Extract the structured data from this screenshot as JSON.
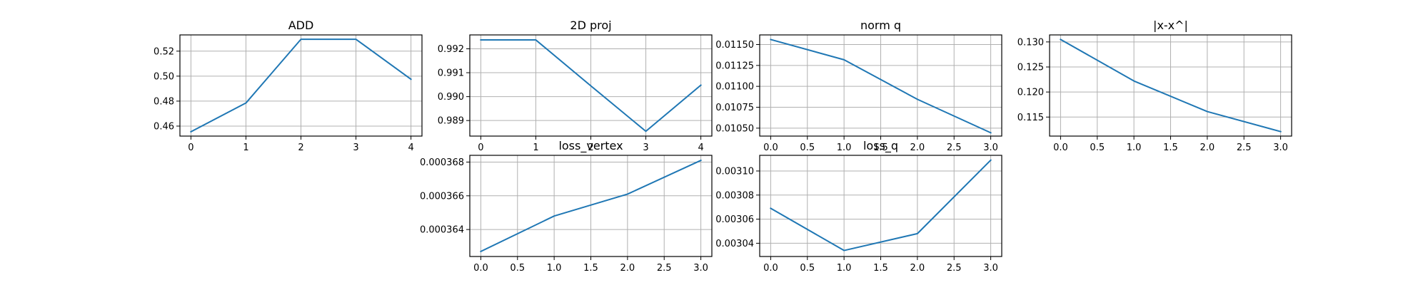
{
  "chart_data": [
    {
      "type": "line",
      "title": "ADD",
      "x": [
        0,
        1,
        2,
        3,
        4
      ],
      "series": [
        {
          "values": [
            0.4555,
            0.4785,
            0.5295,
            0.5295,
            0.4975
          ]
        }
      ],
      "xlim": [
        -0.2,
        4.2
      ],
      "ylim": [
        0.452,
        0.533
      ],
      "xticks": [
        0,
        1,
        2,
        3,
        4
      ],
      "xtick_labels": [
        "0",
        "1",
        "2",
        "3",
        "4"
      ],
      "yticks": [
        0.46,
        0.48,
        0.5,
        0.52
      ],
      "ytick_labels": [
        "0.46",
        "0.48",
        "0.50",
        "0.52"
      ],
      "grid": true,
      "color": "#1f77b4"
    },
    {
      "type": "line",
      "title": "2D proj",
      "x": [
        0,
        1,
        2,
        3,
        4
      ],
      "series": [
        {
          "values": [
            0.99237,
            0.99237,
            0.99045,
            0.98855,
            0.99048
          ]
        }
      ],
      "xlim": [
        -0.2,
        4.2
      ],
      "ylim": [
        0.98835,
        0.99258
      ],
      "xticks": [
        0,
        1,
        2,
        3,
        4
      ],
      "xtick_labels": [
        "0",
        "1",
        "2",
        "3",
        "4"
      ],
      "yticks": [
        0.989,
        0.99,
        0.991,
        0.992
      ],
      "ytick_labels": [
        "0.989",
        "0.990",
        "0.991",
        "0.992"
      ],
      "grid": true,
      "color": "#1f77b4"
    },
    {
      "type": "line",
      "title": "norm q",
      "x": [
        0,
        1,
        2,
        3
      ],
      "series": [
        {
          "values": [
            0.01156,
            0.011318,
            0.010845,
            0.010445
          ]
        }
      ],
      "xlim": [
        -0.15,
        3.15
      ],
      "ylim": [
        0.010405,
        0.011615
      ],
      "xticks": [
        0,
        0.5,
        1,
        1.5,
        2,
        2.5,
        3
      ],
      "xtick_labels": [
        "0.0",
        "0.5",
        "1.0",
        "1.5",
        "2.0",
        "2.5",
        "3.0"
      ],
      "yticks": [
        0.0105,
        0.01075,
        0.011,
        0.01125,
        0.0115
      ],
      "ytick_labels": [
        "0.01050",
        "0.01075",
        "0.01100",
        "0.01125",
        "0.01150"
      ],
      "grid": true,
      "color": "#1f77b4"
    },
    {
      "type": "line",
      "title": "|x-x^|",
      "x": [
        0,
        1,
        2,
        3
      ],
      "series": [
        {
          "values": [
            0.1305,
            0.1222,
            0.1161,
            0.1121
          ]
        }
      ],
      "xlim": [
        -0.15,
        3.15
      ],
      "ylim": [
        0.1112,
        0.1314
      ],
      "xticks": [
        0,
        0.5,
        1,
        1.5,
        2,
        2.5,
        3
      ],
      "xtick_labels": [
        "0.0",
        "0.5",
        "1.0",
        "1.5",
        "2.0",
        "2.5",
        "3.0"
      ],
      "yticks": [
        0.115,
        0.12,
        0.125,
        0.13
      ],
      "ytick_labels": [
        "0.115",
        "0.120",
        "0.125",
        "0.130"
      ],
      "grid": true,
      "color": "#1f77b4"
    },
    {
      "type": "line",
      "title": "loss_vertex",
      "x": [
        0,
        1,
        2,
        3
      ],
      "series": [
        {
          "values": [
            0.0003627,
            0.0003648,
            0.0003661,
            0.0003681
          ]
        }
      ],
      "xlim": [
        -0.15,
        3.15
      ],
      "ylim": [
        0.0003624,
        0.0003684
      ],
      "xticks": [
        0,
        0.5,
        1,
        1.5,
        2,
        2.5,
        3
      ],
      "xtick_labels": [
        "0.0",
        "0.5",
        "1.0",
        "1.5",
        "2.0",
        "2.5",
        "3.0"
      ],
      "yticks": [
        0.000364,
        0.000366,
        0.000368
      ],
      "ytick_labels": [
        "0.000364",
        "0.000366",
        "0.000368"
      ],
      "grid": true,
      "color": "#1f77b4"
    },
    {
      "type": "line",
      "title": "loss_q",
      "x": [
        0,
        1,
        2,
        3
      ],
      "series": [
        {
          "values": [
            0.003069,
            0.003034,
            0.003048,
            0.003109
          ]
        }
      ],
      "xlim": [
        -0.15,
        3.15
      ],
      "ylim": [
        0.003029,
        0.003113
      ],
      "xticks": [
        0,
        0.5,
        1,
        1.5,
        2,
        2.5,
        3
      ],
      "xtick_labels": [
        "0.0",
        "0.5",
        "1.0",
        "1.5",
        "2.0",
        "2.5",
        "3.0"
      ],
      "yticks": [
        0.00304,
        0.00306,
        0.00308,
        0.0031
      ],
      "ytick_labels": [
        "0.00304",
        "0.00306",
        "0.00308",
        "0.00310"
      ],
      "grid": true,
      "color": "#1f77b4"
    }
  ]
}
